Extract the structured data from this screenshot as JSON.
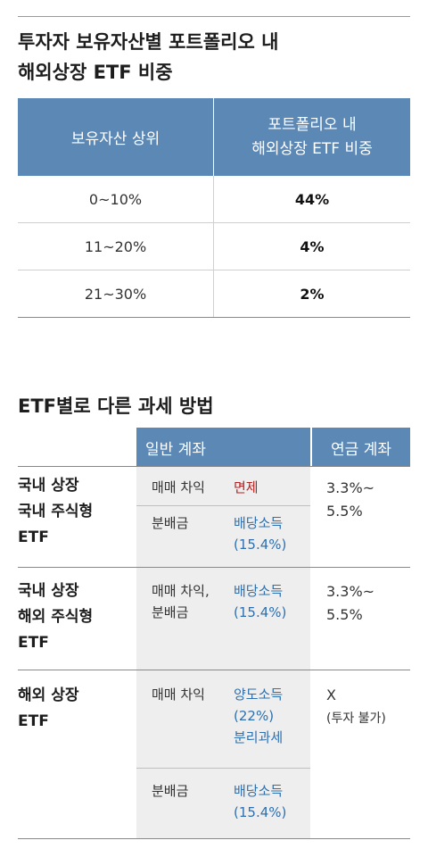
{
  "title1": {
    "line1": "투자자 보유자산별 포트폴리오 내",
    "line2": "해외상장 ETF 비중"
  },
  "table1": {
    "header": {
      "col1": "보유자산 상위",
      "col2_line1": "포트폴리오 내",
      "col2_line2": "해외상장 ETF 비중"
    },
    "rows": [
      {
        "range": "0~10%",
        "share": "44%"
      },
      {
        "range": "11~20%",
        "share": "4%"
      },
      {
        "range": "21~30%",
        "share": "2%"
      }
    ]
  },
  "title2": "ETF별로 다른 과세 방법",
  "table2": {
    "header": {
      "general": "일반 계좌",
      "pension": "연금 계좌"
    },
    "sections": [
      {
        "label": [
          "국내 상장",
          "국내 주식형",
          "ETF"
        ],
        "items": [
          {
            "key": [
              "매매 차익"
            ],
            "value": [
              "면제"
            ],
            "value_color": "#b32222"
          },
          {
            "key": [
              "분배금"
            ],
            "value": [
              "배당소득",
              "(15.4%)"
            ],
            "value_color": "#2f6fae"
          }
        ],
        "pension": [
          "3.3%~",
          "5.5%"
        ]
      },
      {
        "label": [
          "국내 상장",
          "해외 주식형",
          "ETF"
        ],
        "items": [
          {
            "key": [
              "매매 차익,",
              "분배금"
            ],
            "value": [
              "배당소득",
              "(15.4%)"
            ],
            "value_color": "#2f6fae"
          }
        ],
        "pension": [
          "3.3%~",
          "5.5%"
        ]
      },
      {
        "label": [
          "해외 상장",
          "ETF"
        ],
        "items": [
          {
            "key": [
              "매매 차익"
            ],
            "value": [
              "양도소득",
              "(22%)",
              "분리과세"
            ],
            "value_color": "#2f6fae"
          },
          {
            "key": [
              "분배금"
            ],
            "value": [
              "배당소득",
              "(15.4%)"
            ],
            "value_color": "#2f6fae"
          }
        ],
        "pension": [
          "X",
          "(투자 불가)"
        ]
      }
    ]
  }
}
